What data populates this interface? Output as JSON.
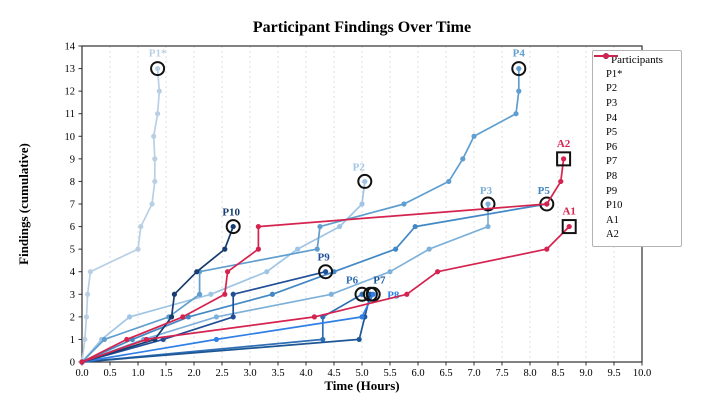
{
  "title": "Participant Findings Over Time",
  "legend": {
    "title": "Participants"
  },
  "chart_data": {
    "type": "line",
    "title": "Participant Findings Over Time",
    "xlabel": "Time (Hours)",
    "ylabel": "Findings (cumulative)",
    "xlim": [
      0.0,
      10.0
    ],
    "ylim": [
      0,
      14
    ],
    "xtick_step": 0.5,
    "ytick_step": 1,
    "grid": "vertical-dashed",
    "legend_position": "upper-right",
    "series": [
      {
        "name": "P1*",
        "color": "#b9cfe4",
        "end_marker": "circle",
        "label_offset": [
          0,
          -12
        ],
        "points": [
          [
            0,
            0
          ],
          [
            0.05,
            1
          ],
          [
            0.08,
            2
          ],
          [
            0.1,
            3
          ],
          [
            0.15,
            4
          ],
          [
            1.0,
            5
          ],
          [
            1.05,
            6
          ],
          [
            1.25,
            7
          ],
          [
            1.3,
            8
          ],
          [
            1.3,
            9
          ],
          [
            1.28,
            10
          ],
          [
            1.35,
            11
          ],
          [
            1.38,
            12
          ],
          [
            1.35,
            13
          ]
        ]
      },
      {
        "name": "P2",
        "color": "#a0c5e4",
        "end_marker": "circle",
        "label_offset": [
          -6,
          -11
        ],
        "points": [
          [
            0,
            0
          ],
          [
            0.35,
            1
          ],
          [
            0.85,
            2
          ],
          [
            2.3,
            3
          ],
          [
            3.3,
            4
          ],
          [
            3.85,
            5
          ],
          [
            4.6,
            6
          ],
          [
            5.0,
            7
          ],
          [
            5.05,
            8
          ]
        ]
      },
      {
        "name": "P3",
        "color": "#7eb1d9",
        "end_marker": "circle",
        "label_offset": [
          -2,
          -10
        ],
        "points": [
          [
            0,
            0
          ],
          [
            1.1,
            1
          ],
          [
            2.4,
            2
          ],
          [
            4.45,
            3
          ],
          [
            5.5,
            4
          ],
          [
            6.2,
            5
          ],
          [
            7.25,
            6
          ],
          [
            7.25,
            7
          ]
        ]
      },
      {
        "name": "P4",
        "color": "#5f9ecf",
        "end_marker": "circle",
        "label_offset": [
          0,
          -12
        ],
        "points": [
          [
            0,
            0
          ],
          [
            0.4,
            1
          ],
          [
            1.55,
            2
          ],
          [
            2.1,
            3
          ],
          [
            2.1,
            4
          ],
          [
            4.2,
            5
          ],
          [
            4.25,
            6
          ],
          [
            5.75,
            7
          ],
          [
            6.55,
            8
          ],
          [
            6.8,
            9
          ],
          [
            7.0,
            10
          ],
          [
            7.75,
            11
          ],
          [
            7.8,
            12
          ],
          [
            7.8,
            13
          ]
        ]
      },
      {
        "name": "P5",
        "color": "#4288c5",
        "end_marker": "circle",
        "label_offset": [
          -3,
          -10
        ],
        "points": [
          [
            0,
            0
          ],
          [
            0.9,
            1
          ],
          [
            1.9,
            2
          ],
          [
            3.4,
            3
          ],
          [
            4.5,
            4
          ],
          [
            5.6,
            5
          ],
          [
            5.95,
            6
          ],
          [
            8.3,
            7
          ]
        ]
      },
      {
        "name": "P6",
        "color": "#2e6fb5",
        "end_marker": "circle",
        "label_offset": [
          -10,
          -11
        ],
        "points": [
          [
            0,
            0
          ],
          [
            4.3,
            1
          ],
          [
            4.3,
            2
          ],
          [
            5.0,
            3
          ]
        ]
      },
      {
        "name": "P7",
        "color": "#1d5694",
        "end_marker": "circle",
        "label_offset": [
          9,
          -11
        ],
        "points": [
          [
            0,
            0
          ],
          [
            4.95,
            1
          ],
          [
            5.05,
            2
          ],
          [
            5.15,
            3
          ]
        ]
      },
      {
        "name": "P8",
        "color": "#2f7fe6",
        "end_marker": "circle",
        "label_offset": [
          14,
          4
        ],
        "label_anchor": "start",
        "points": [
          [
            0,
            0
          ],
          [
            2.4,
            1
          ],
          [
            5.0,
            2
          ],
          [
            5.2,
            3
          ]
        ]
      },
      {
        "name": "P9",
        "color": "#204f97",
        "end_marker": "circle",
        "label_offset": [
          -2,
          -11
        ],
        "points": [
          [
            0,
            0
          ],
          [
            1.45,
            1
          ],
          [
            2.7,
            2
          ],
          [
            2.7,
            3
          ],
          [
            4.35,
            4
          ]
        ]
      },
      {
        "name": "P10",
        "color": "#173c6f",
        "end_marker": "circle",
        "label_offset": [
          -2,
          -11
        ],
        "points": [
          [
            0,
            0
          ],
          [
            1.3,
            1
          ],
          [
            1.6,
            2
          ],
          [
            1.65,
            3
          ],
          [
            2.05,
            4
          ],
          [
            2.55,
            5
          ],
          [
            2.7,
            6
          ]
        ]
      },
      {
        "name": "A1",
        "color": "#d5234f",
        "end_marker": "square",
        "label_offset": [
          0,
          -12
        ],
        "points": [
          [
            0,
            0
          ],
          [
            1.15,
            1
          ],
          [
            4.15,
            2
          ],
          [
            5.8,
            3
          ],
          [
            6.35,
            4
          ],
          [
            8.3,
            5
          ],
          [
            8.7,
            6
          ]
        ]
      },
      {
        "name": "A2",
        "color": "#d5234f",
        "end_marker": "square",
        "label_offset": [
          0,
          -12
        ],
        "points": [
          [
            0,
            0
          ],
          [
            0.8,
            1
          ],
          [
            1.8,
            2
          ],
          [
            2.55,
            3
          ],
          [
            2.6,
            4
          ],
          [
            3.15,
            5
          ],
          [
            3.15,
            6
          ],
          [
            8.3,
            7
          ],
          [
            8.55,
            8
          ],
          [
            8.6,
            9
          ]
        ]
      }
    ]
  }
}
